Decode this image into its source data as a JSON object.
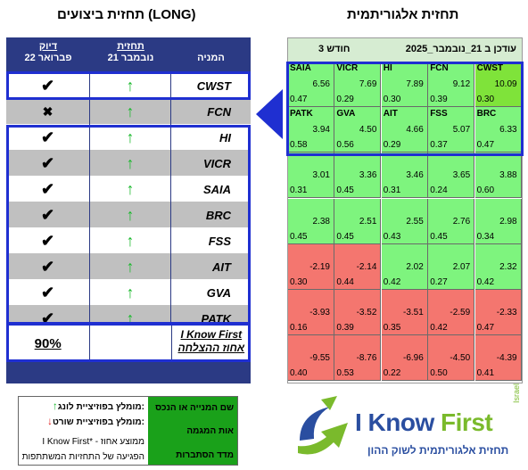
{
  "titles": {
    "left": "תחזית ביצועים (LONG)",
    "right": "תחזית אלגוריתמית"
  },
  "performance": {
    "headers": {
      "company": "המניה",
      "forecast": "תחזית",
      "forecast_date": "21 נובמבר",
      "accuracy": "דיוק",
      "accuracy_date": "22 פברואר"
    },
    "rows": [
      {
        "ticker": "CWST",
        "forecast": "up",
        "accuracy": "check"
      },
      {
        "ticker": "FCN",
        "forecast": "up",
        "accuracy": "cross"
      },
      {
        "ticker": "HI",
        "forecast": "up",
        "accuracy": "check"
      },
      {
        "ticker": "VICR",
        "forecast": "up",
        "accuracy": "check"
      },
      {
        "ticker": "SAIA",
        "forecast": "up",
        "accuracy": "check"
      },
      {
        "ticker": "BRC",
        "forecast": "up",
        "accuracy": "check"
      },
      {
        "ticker": "FSS",
        "forecast": "up",
        "accuracy": "check"
      },
      {
        "ticker": "AIT",
        "forecast": "up",
        "accuracy": "check"
      },
      {
        "ticker": "GVA",
        "forecast": "up",
        "accuracy": "check"
      },
      {
        "ticker": "PATK",
        "forecast": "up",
        "accuracy": "check"
      }
    ],
    "summary": {
      "label_line1": "I Know First",
      "label_line2": "אחוז ההצלחה",
      "value": "90%"
    }
  },
  "grid": {
    "header": {
      "updated": "עודכן ב 21_נובמבר_2025",
      "horizon": "3 חודש"
    },
    "cells": [
      {
        "ticker": "CWST",
        "signal": "10.09",
        "predictability": "0.30",
        "color": "lime"
      },
      {
        "ticker": "FCN",
        "signal": "9.12",
        "predictability": "0.39",
        "color": "green"
      },
      {
        "ticker": "HI",
        "signal": "7.89",
        "predictability": "0.30",
        "color": "green"
      },
      {
        "ticker": "VICR",
        "signal": "7.69",
        "predictability": "0.29",
        "color": "green"
      },
      {
        "ticker": "SAIA",
        "signal": "6.56",
        "predictability": "0.47",
        "color": "green"
      },
      {
        "ticker": "BRC",
        "signal": "6.33",
        "predictability": "0.47",
        "color": "green"
      },
      {
        "ticker": "FSS",
        "signal": "5.07",
        "predictability": "0.37",
        "color": "green"
      },
      {
        "ticker": "AIT",
        "signal": "4.66",
        "predictability": "0.29",
        "color": "green"
      },
      {
        "ticker": "GVA",
        "signal": "4.50",
        "predictability": "0.56",
        "color": "green"
      },
      {
        "ticker": "PATK",
        "signal": "3.94",
        "predictability": "0.58",
        "color": "green"
      },
      {
        "ticker": "",
        "signal": "3.88",
        "predictability": "0.60",
        "color": "green"
      },
      {
        "ticker": "",
        "signal": "3.65",
        "predictability": "0.24",
        "color": "green"
      },
      {
        "ticker": "",
        "signal": "3.46",
        "predictability": "0.31",
        "color": "green"
      },
      {
        "ticker": "",
        "signal": "3.36",
        "predictability": "0.45",
        "color": "green"
      },
      {
        "ticker": "",
        "signal": "3.01",
        "predictability": "0.31",
        "color": "green"
      },
      {
        "ticker": "",
        "signal": "2.98",
        "predictability": "0.34",
        "color": "green"
      },
      {
        "ticker": "",
        "signal": "2.76",
        "predictability": "0.45",
        "color": "green"
      },
      {
        "ticker": "",
        "signal": "2.55",
        "predictability": "0.43",
        "color": "green"
      },
      {
        "ticker": "",
        "signal": "2.51",
        "predictability": "0.45",
        "color": "green"
      },
      {
        "ticker": "",
        "signal": "2.38",
        "predictability": "0.45",
        "color": "green"
      },
      {
        "ticker": "",
        "signal": "2.32",
        "predictability": "0.42",
        "color": "green"
      },
      {
        "ticker": "",
        "signal": "2.07",
        "predictability": "0.27",
        "color": "green"
      },
      {
        "ticker": "",
        "signal": "2.02",
        "predictability": "0.42",
        "color": "green"
      },
      {
        "ticker": "",
        "signal": "-2.14",
        "predictability": "0.44",
        "color": "red"
      },
      {
        "ticker": "",
        "signal": "-2.19",
        "predictability": "0.30",
        "color": "red"
      },
      {
        "ticker": "",
        "signal": "-2.33",
        "predictability": "0.47",
        "color": "red"
      },
      {
        "ticker": "",
        "signal": "-2.59",
        "predictability": "0.42",
        "color": "red"
      },
      {
        "ticker": "",
        "signal": "-3.51",
        "predictability": "0.35",
        "color": "red"
      },
      {
        "ticker": "",
        "signal": "-3.52",
        "predictability": "0.39",
        "color": "red"
      },
      {
        "ticker": "",
        "signal": "-3.93",
        "predictability": "0.16",
        "color": "red"
      },
      {
        "ticker": "",
        "signal": "-4.39",
        "predictability": "0.41",
        "color": "red"
      },
      {
        "ticker": "",
        "signal": "-4.50",
        "predictability": "0.50",
        "color": "red"
      },
      {
        "ticker": "",
        "signal": "-6.96",
        "predictability": "0.22",
        "color": "red"
      },
      {
        "ticker": "",
        "signal": "-8.76",
        "predictability": "0.53",
        "color": "red"
      },
      {
        "ticker": "",
        "signal": "-9.55",
        "predictability": "0.40",
        "color": "red"
      }
    ]
  },
  "legend": {
    "ticker_name": "שם המנייה או הנכס",
    "signal": "אות המגמה",
    "predictability": "מדד הסתברות",
    "long": "מומלץ בפוזיציית לונג:",
    "short": "מומלץ בפוזיציית שורט:",
    "up_arrow": "↑",
    "down_arrow": "↓",
    "note1": "I Know First* - ממוצע אחוז",
    "note2": "הפגיעה של התחזיות המשתתפות"
  },
  "logo": {
    "brand_1": "I Know ",
    "brand_2": "First",
    "israel": "Israel",
    "tagline": "תחזית אלגוריתמית לשוק ההון"
  },
  "colors": {
    "navy": "#2b3a84",
    "blue_border": "#1f2fd1",
    "green_cell": "#7ef47e",
    "lime_cell": "#7fe33a",
    "red_cell": "#f4766f",
    "arrow_green": "#19b82c"
  }
}
